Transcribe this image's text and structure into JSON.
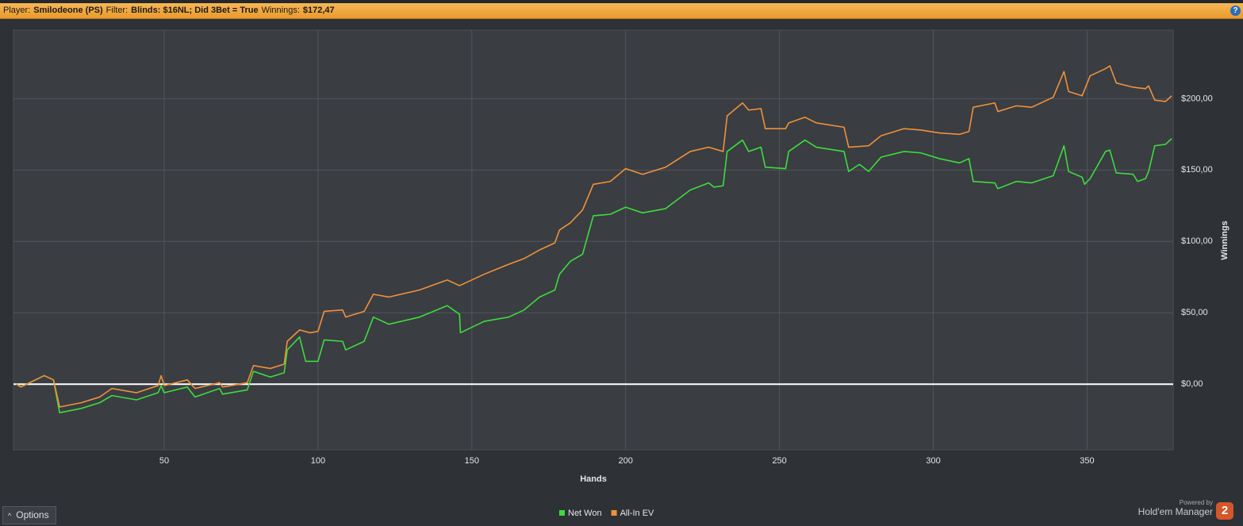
{
  "header": {
    "player_label": "Player:",
    "player": "Smilodeone (PS)",
    "filter_label": "Filter:",
    "filter": "Blinds: $16NL; Did 3Bet = True",
    "winnings_label": "Winnings:",
    "winnings": "$172,47",
    "help_icon": "?"
  },
  "footer": {
    "options": "Options",
    "options_caret": "^",
    "powered_by": "Powered by",
    "product": "Hold'em Manager",
    "logo": "2"
  },
  "chart_data": {
    "type": "line",
    "x_label": "Hands",
    "y_label": "Winnings",
    "xlim": [
      1,
      378
    ],
    "ylim": [
      -46,
      248
    ],
    "xticks": [
      50,
      100,
      150,
      200,
      250,
      300,
      350
    ],
    "yticks": [
      {
        "value": 0,
        "label": "$0,00"
      },
      {
        "value": 50,
        "label": "$50,00"
      },
      {
        "value": 100,
        "label": "$100,00"
      },
      {
        "value": 150,
        "label": "$150,00"
      },
      {
        "value": 200,
        "label": "$200,00"
      }
    ],
    "grid": true,
    "zero_line": true,
    "legend": "bottom",
    "series": [
      {
        "name": "Net Won",
        "color": "#3ddc3d",
        "x": [
          1.9,
          3.4,
          11,
          14,
          16,
          23,
          29,
          33,
          41,
          48,
          49,
          50,
          57.5,
          60,
          68,
          69,
          77,
          79,
          84.5,
          89,
          90,
          94,
          96,
          100,
          102,
          108,
          109,
          115,
          118,
          123,
          133,
          142,
          146,
          146.3,
          154,
          162,
          167,
          172,
          177,
          178.5,
          182,
          186,
          189.5,
          195,
          200,
          205.5,
          213,
          221,
          227,
          228.7,
          231.7,
          233,
          238,
          240,
          244,
          245.4,
          252,
          253,
          258.3,
          262,
          271,
          272.5,
          276,
          279,
          283,
          290.5,
          296,
          302,
          308.5,
          311.6,
          313,
          320,
          321,
          327,
          332,
          339,
          342.5,
          344,
          348.4,
          349.2,
          351,
          356,
          357.4,
          359.5,
          365,
          366.4,
          369,
          370,
          372,
          375.5,
          377.5
        ],
        "values": [
          0,
          -2,
          6,
          3,
          -20,
          -17,
          -13,
          -8,
          -11,
          -6,
          -1,
          -6,
          -2,
          -9,
          -3,
          -7,
          -4,
          9,
          5,
          8,
          24,
          33,
          16,
          16,
          31,
          30,
          24,
          30,
          47,
          42,
          47,
          55,
          49,
          36,
          44,
          47,
          52,
          61,
          66,
          77,
          86,
          91,
          118,
          119,
          124,
          120,
          123,
          136,
          141,
          138,
          139,
          163,
          171,
          163,
          166,
          152,
          151,
          163,
          171,
          166,
          163,
          149,
          154,
          149,
          159,
          163,
          162,
          158,
          155,
          158,
          142,
          141,
          137,
          142,
          141,
          146,
          167,
          149,
          145,
          140,
          144,
          163,
          164,
          148,
          147,
          142,
          144,
          149,
          167,
          168,
          172
        ]
      },
      {
        "name": "All-In EV",
        "color": "#f0913a",
        "x": [
          2,
          3.4,
          11,
          14,
          16,
          23,
          29,
          33,
          41,
          48,
          49,
          50,
          57.5,
          60,
          68,
          69,
          77,
          79,
          84.5,
          89,
          90,
          94,
          97.4,
          100,
          102,
          108,
          109,
          115,
          118,
          123,
          133,
          142,
          146,
          154,
          162,
          167,
          172,
          177,
          178.5,
          182,
          186,
          189.5,
          195,
          200,
          205.5,
          213,
          221,
          227,
          231.7,
          233,
          238,
          240,
          244,
          245.4,
          252,
          253,
          258.3,
          262,
          271,
          272.5,
          279,
          283,
          290.5,
          296,
          302,
          308.5,
          311.6,
          313,
          320,
          321,
          327,
          332,
          339,
          342.5,
          344,
          348.4,
          351,
          356,
          357.4,
          359.5,
          365,
          369,
          370,
          372,
          375.5,
          377.5
        ],
        "values": [
          0,
          -2,
          6,
          3,
          -16,
          -13,
          -9,
          -3,
          -6,
          -1,
          6,
          -1,
          3,
          -3,
          1,
          -2,
          1,
          13,
          11,
          14,
          30,
          38,
          36,
          37,
          51,
          52,
          47,
          51,
          63,
          61,
          66,
          73,
          69,
          77,
          84,
          88,
          94,
          99,
          108,
          113,
          122,
          140,
          142,
          151,
          147,
          152,
          163,
          166,
          163,
          188,
          197,
          192,
          193,
          179,
          179,
          183,
          187,
          183,
          180,
          166,
          167,
          174,
          179,
          178,
          176,
          175,
          177,
          194,
          197,
          191,
          195,
          194,
          201,
          219,
          205,
          202,
          216,
          221,
          223,
          211,
          208,
          207,
          209,
          199,
          198,
          202
        ]
      }
    ]
  }
}
